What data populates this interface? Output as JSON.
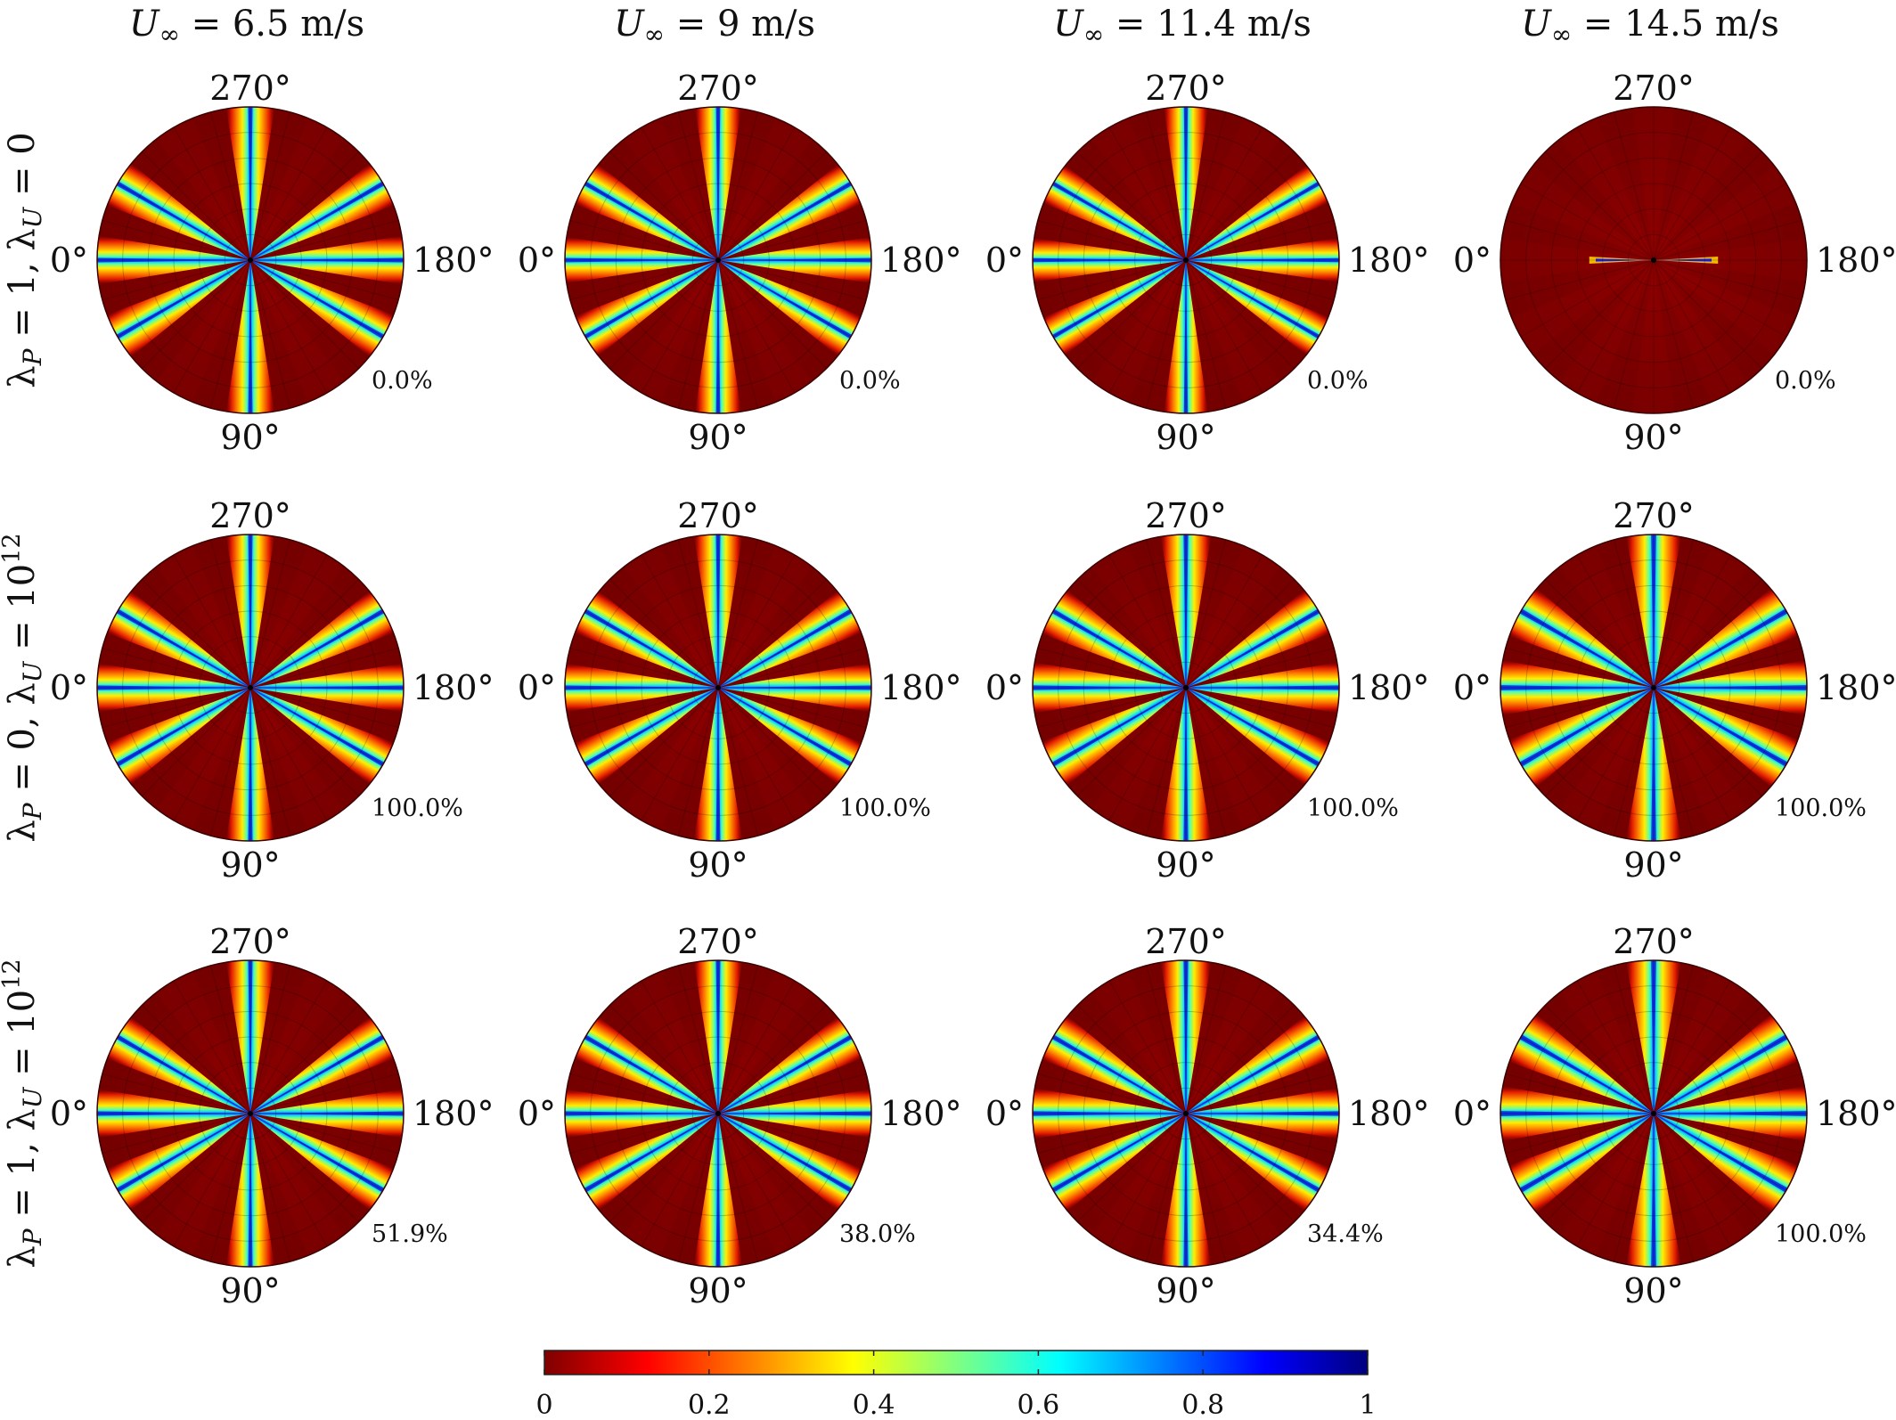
{
  "chart_data": {
    "type": "heatmap",
    "layout": {
      "rows": 3,
      "cols": 4,
      "projection": "polar"
    },
    "column_titles": [
      {
        "symbol": "U",
        "subscript": "∞",
        "value": "6.5",
        "unit": "m/s"
      },
      {
        "symbol": "U",
        "subscript": "∞",
        "value": "9",
        "unit": "m/s"
      },
      {
        "symbol": "U",
        "subscript": "∞",
        "value": "11.4",
        "unit": "m/s"
      },
      {
        "symbol": "U",
        "subscript": "∞",
        "value": "14.5",
        "unit": "m/s"
      }
    ],
    "row_labels": [
      {
        "lambda_p": "1",
        "lambda_u": "0",
        "lambda_u_exp": ""
      },
      {
        "lambda_p": "0",
        "lambda_u": "10",
        "lambda_u_exp": "12"
      },
      {
        "lambda_p": "1",
        "lambda_u": "10",
        "lambda_u_exp": "12"
      }
    ],
    "angle_labels": {
      "top": "270°",
      "left": "0°",
      "right": "180°",
      "bottom": "90°"
    },
    "panels": [
      {
        "row": 0,
        "col": 0,
        "annotation": "0.0%",
        "spokes": [
          0,
          30,
          90,
          150,
          180,
          210,
          270,
          330
        ],
        "band_width": 0.85
      },
      {
        "row": 0,
        "col": 1,
        "annotation": "0.0%",
        "spokes": [
          0,
          30,
          90,
          150,
          180,
          210,
          270,
          330
        ],
        "band_width": 0.8
      },
      {
        "row": 0,
        "col": 2,
        "annotation": "0.0%",
        "spokes": [
          0,
          30,
          90,
          150,
          180,
          210,
          270,
          330
        ],
        "band_width": 0.75
      },
      {
        "row": 0,
        "col": 3,
        "annotation": "0.0%",
        "spokes": [
          0,
          180
        ],
        "band_width": 0.35
      },
      {
        "row": 1,
        "col": 0,
        "annotation": "100.0%",
        "spokes": [
          0,
          30,
          90,
          150,
          180,
          210,
          270,
          330
        ],
        "band_width": 0.85
      },
      {
        "row": 1,
        "col": 1,
        "annotation": "100.0%",
        "spokes": [
          0,
          30,
          90,
          150,
          180,
          210,
          270,
          330
        ],
        "band_width": 0.85
      },
      {
        "row": 1,
        "col": 2,
        "annotation": "100.0%",
        "spokes": [
          0,
          30,
          90,
          150,
          180,
          210,
          270,
          330
        ],
        "band_width": 0.9
      },
      {
        "row": 1,
        "col": 3,
        "annotation": "100.0%",
        "spokes": [
          0,
          30,
          90,
          150,
          180,
          210,
          270,
          330
        ],
        "band_width": 1.0
      },
      {
        "row": 2,
        "col": 0,
        "annotation": "51.9%",
        "spokes": [
          0,
          30,
          90,
          150,
          180,
          210,
          270,
          330
        ],
        "band_width": 0.85
      },
      {
        "row": 2,
        "col": 1,
        "annotation": "38.0%",
        "spokes": [
          0,
          30,
          90,
          150,
          180,
          210,
          270,
          330
        ],
        "band_width": 0.85
      },
      {
        "row": 2,
        "col": 2,
        "annotation": "34.4%",
        "spokes": [
          0,
          30,
          90,
          150,
          180,
          210,
          270,
          330
        ],
        "band_width": 0.9
      },
      {
        "row": 2,
        "col": 3,
        "annotation": "100.0%",
        "spokes": [
          0,
          30,
          90,
          150,
          180,
          210,
          270,
          330
        ],
        "band_width": 1.0
      }
    ],
    "colorbar": {
      "range": [
        0,
        1
      ],
      "ticks": [
        "0",
        "0.2",
        "0.4",
        "0.6",
        "0.8",
        "1"
      ],
      "colormap": "jet-reversed",
      "stops": [
        "#7f0000",
        "#ff0000",
        "#ff8000",
        "#ffff00",
        "#80ff80",
        "#00ffff",
        "#0080ff",
        "#0000ff",
        "#00007f"
      ]
    }
  }
}
